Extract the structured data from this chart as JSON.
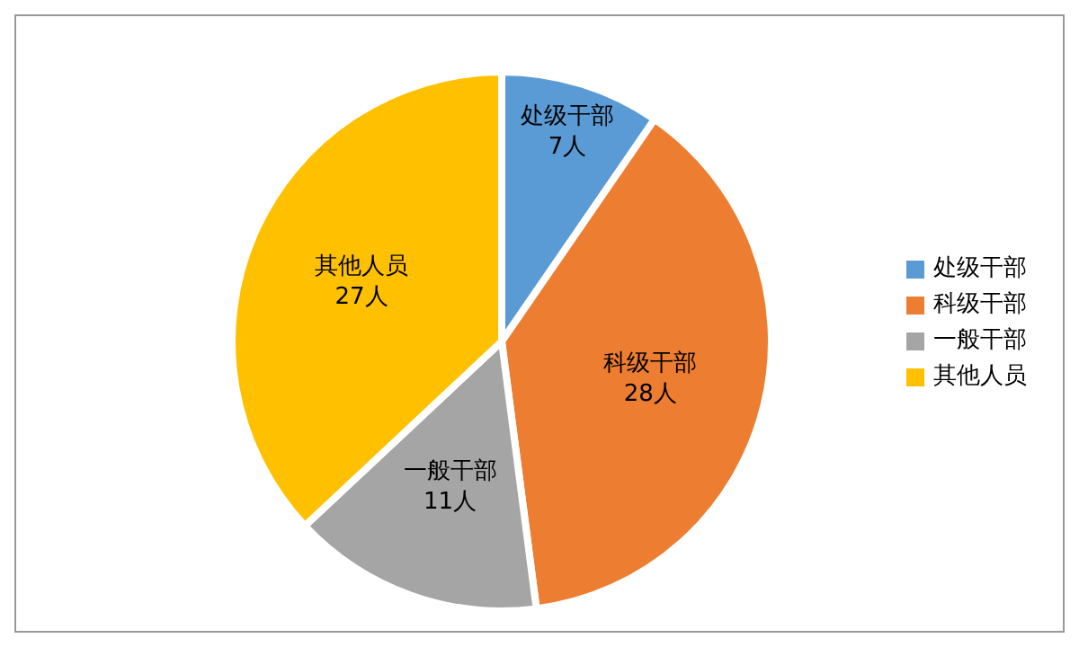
{
  "chart_data": {
    "type": "pie",
    "categories": [
      "处级干部",
      "科级干部",
      "一般干部",
      "其他人员"
    ],
    "values": [
      7,
      28,
      11,
      27
    ],
    "value_labels": [
      "7人",
      "28人",
      "11人",
      "27人"
    ],
    "colors": [
      "#5b9bd5",
      "#ed7d31",
      "#a5a5a5",
      "#ffc000"
    ],
    "legend": "right"
  }
}
